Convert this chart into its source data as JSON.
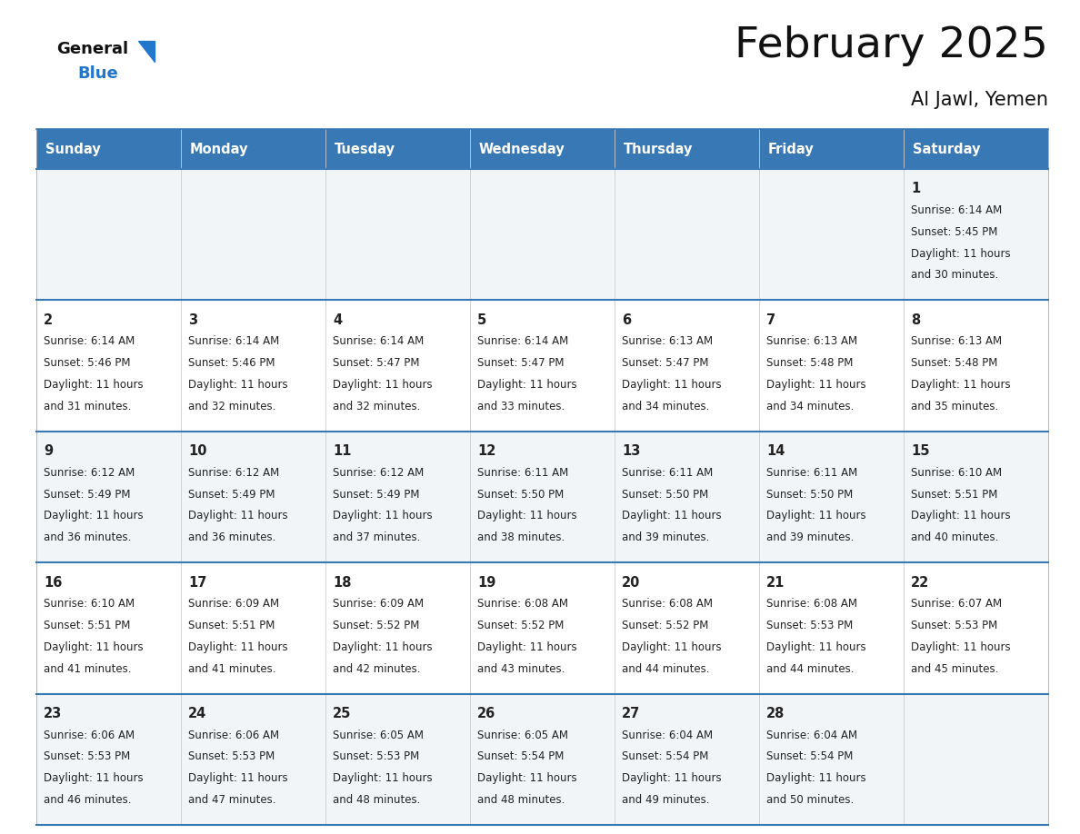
{
  "title": "February 2025",
  "subtitle": "Al Jawl, Yemen",
  "days_of_week": [
    "Sunday",
    "Monday",
    "Tuesday",
    "Wednesday",
    "Thursday",
    "Friday",
    "Saturday"
  ],
  "header_bg_color": "#3878b4",
  "header_text_color": "#ffffff",
  "cell_bg_odd": "#f2f5f8",
  "cell_bg_even": "#ffffff",
  "day_number_color": "#222222",
  "info_text_color": "#222222",
  "border_color": "#3878b4",
  "title_color": "#111111",
  "subtitle_color": "#111111",
  "background_color": "#ffffff",
  "logo_text_color": "#111111",
  "logo_blue_color": "#2277cc",
  "calendar_data": [
    [
      null,
      null,
      null,
      null,
      null,
      null,
      {
        "day": 1,
        "sunrise": "6:14 AM",
        "sunset": "5:45 PM",
        "daylight": "11 hours",
        "daylight2": "and 30 minutes."
      }
    ],
    [
      {
        "day": 2,
        "sunrise": "6:14 AM",
        "sunset": "5:46 PM",
        "daylight": "11 hours",
        "daylight2": "and 31 minutes."
      },
      {
        "day": 3,
        "sunrise": "6:14 AM",
        "sunset": "5:46 PM",
        "daylight": "11 hours",
        "daylight2": "and 32 minutes."
      },
      {
        "day": 4,
        "sunrise": "6:14 AM",
        "sunset": "5:47 PM",
        "daylight": "11 hours",
        "daylight2": "and 32 minutes."
      },
      {
        "day": 5,
        "sunrise": "6:14 AM",
        "sunset": "5:47 PM",
        "daylight": "11 hours",
        "daylight2": "and 33 minutes."
      },
      {
        "day": 6,
        "sunrise": "6:13 AM",
        "sunset": "5:47 PM",
        "daylight": "11 hours",
        "daylight2": "and 34 minutes."
      },
      {
        "day": 7,
        "sunrise": "6:13 AM",
        "sunset": "5:48 PM",
        "daylight": "11 hours",
        "daylight2": "and 34 minutes."
      },
      {
        "day": 8,
        "sunrise": "6:13 AM",
        "sunset": "5:48 PM",
        "daylight": "11 hours",
        "daylight2": "and 35 minutes."
      }
    ],
    [
      {
        "day": 9,
        "sunrise": "6:12 AM",
        "sunset": "5:49 PM",
        "daylight": "11 hours",
        "daylight2": "and 36 minutes."
      },
      {
        "day": 10,
        "sunrise": "6:12 AM",
        "sunset": "5:49 PM",
        "daylight": "11 hours",
        "daylight2": "and 36 minutes."
      },
      {
        "day": 11,
        "sunrise": "6:12 AM",
        "sunset": "5:49 PM",
        "daylight": "11 hours",
        "daylight2": "and 37 minutes."
      },
      {
        "day": 12,
        "sunrise": "6:11 AM",
        "sunset": "5:50 PM",
        "daylight": "11 hours",
        "daylight2": "and 38 minutes."
      },
      {
        "day": 13,
        "sunrise": "6:11 AM",
        "sunset": "5:50 PM",
        "daylight": "11 hours",
        "daylight2": "and 39 minutes."
      },
      {
        "day": 14,
        "sunrise": "6:11 AM",
        "sunset": "5:50 PM",
        "daylight": "11 hours",
        "daylight2": "and 39 minutes."
      },
      {
        "day": 15,
        "sunrise": "6:10 AM",
        "sunset": "5:51 PM",
        "daylight": "11 hours",
        "daylight2": "and 40 minutes."
      }
    ],
    [
      {
        "day": 16,
        "sunrise": "6:10 AM",
        "sunset": "5:51 PM",
        "daylight": "11 hours",
        "daylight2": "and 41 minutes."
      },
      {
        "day": 17,
        "sunrise": "6:09 AM",
        "sunset": "5:51 PM",
        "daylight": "11 hours",
        "daylight2": "and 41 minutes."
      },
      {
        "day": 18,
        "sunrise": "6:09 AM",
        "sunset": "5:52 PM",
        "daylight": "11 hours",
        "daylight2": "and 42 minutes."
      },
      {
        "day": 19,
        "sunrise": "6:08 AM",
        "sunset": "5:52 PM",
        "daylight": "11 hours",
        "daylight2": "and 43 minutes."
      },
      {
        "day": 20,
        "sunrise": "6:08 AM",
        "sunset": "5:52 PM",
        "daylight": "11 hours",
        "daylight2": "and 44 minutes."
      },
      {
        "day": 21,
        "sunrise": "6:08 AM",
        "sunset": "5:53 PM",
        "daylight": "11 hours",
        "daylight2": "and 44 minutes."
      },
      {
        "day": 22,
        "sunrise": "6:07 AM",
        "sunset": "5:53 PM",
        "daylight": "11 hours",
        "daylight2": "and 45 minutes."
      }
    ],
    [
      {
        "day": 23,
        "sunrise": "6:06 AM",
        "sunset": "5:53 PM",
        "daylight": "11 hours",
        "daylight2": "and 46 minutes."
      },
      {
        "day": 24,
        "sunrise": "6:06 AM",
        "sunset": "5:53 PM",
        "daylight": "11 hours",
        "daylight2": "and 47 minutes."
      },
      {
        "day": 25,
        "sunrise": "6:05 AM",
        "sunset": "5:53 PM",
        "daylight": "11 hours",
        "daylight2": "and 48 minutes."
      },
      {
        "day": 26,
        "sunrise": "6:05 AM",
        "sunset": "5:54 PM",
        "daylight": "11 hours",
        "daylight2": "and 48 minutes."
      },
      {
        "day": 27,
        "sunrise": "6:04 AM",
        "sunset": "5:54 PM",
        "daylight": "11 hours",
        "daylight2": "and 49 minutes."
      },
      {
        "day": 28,
        "sunrise": "6:04 AM",
        "sunset": "5:54 PM",
        "daylight": "11 hours",
        "daylight2": "and 50 minutes."
      },
      null
    ]
  ]
}
